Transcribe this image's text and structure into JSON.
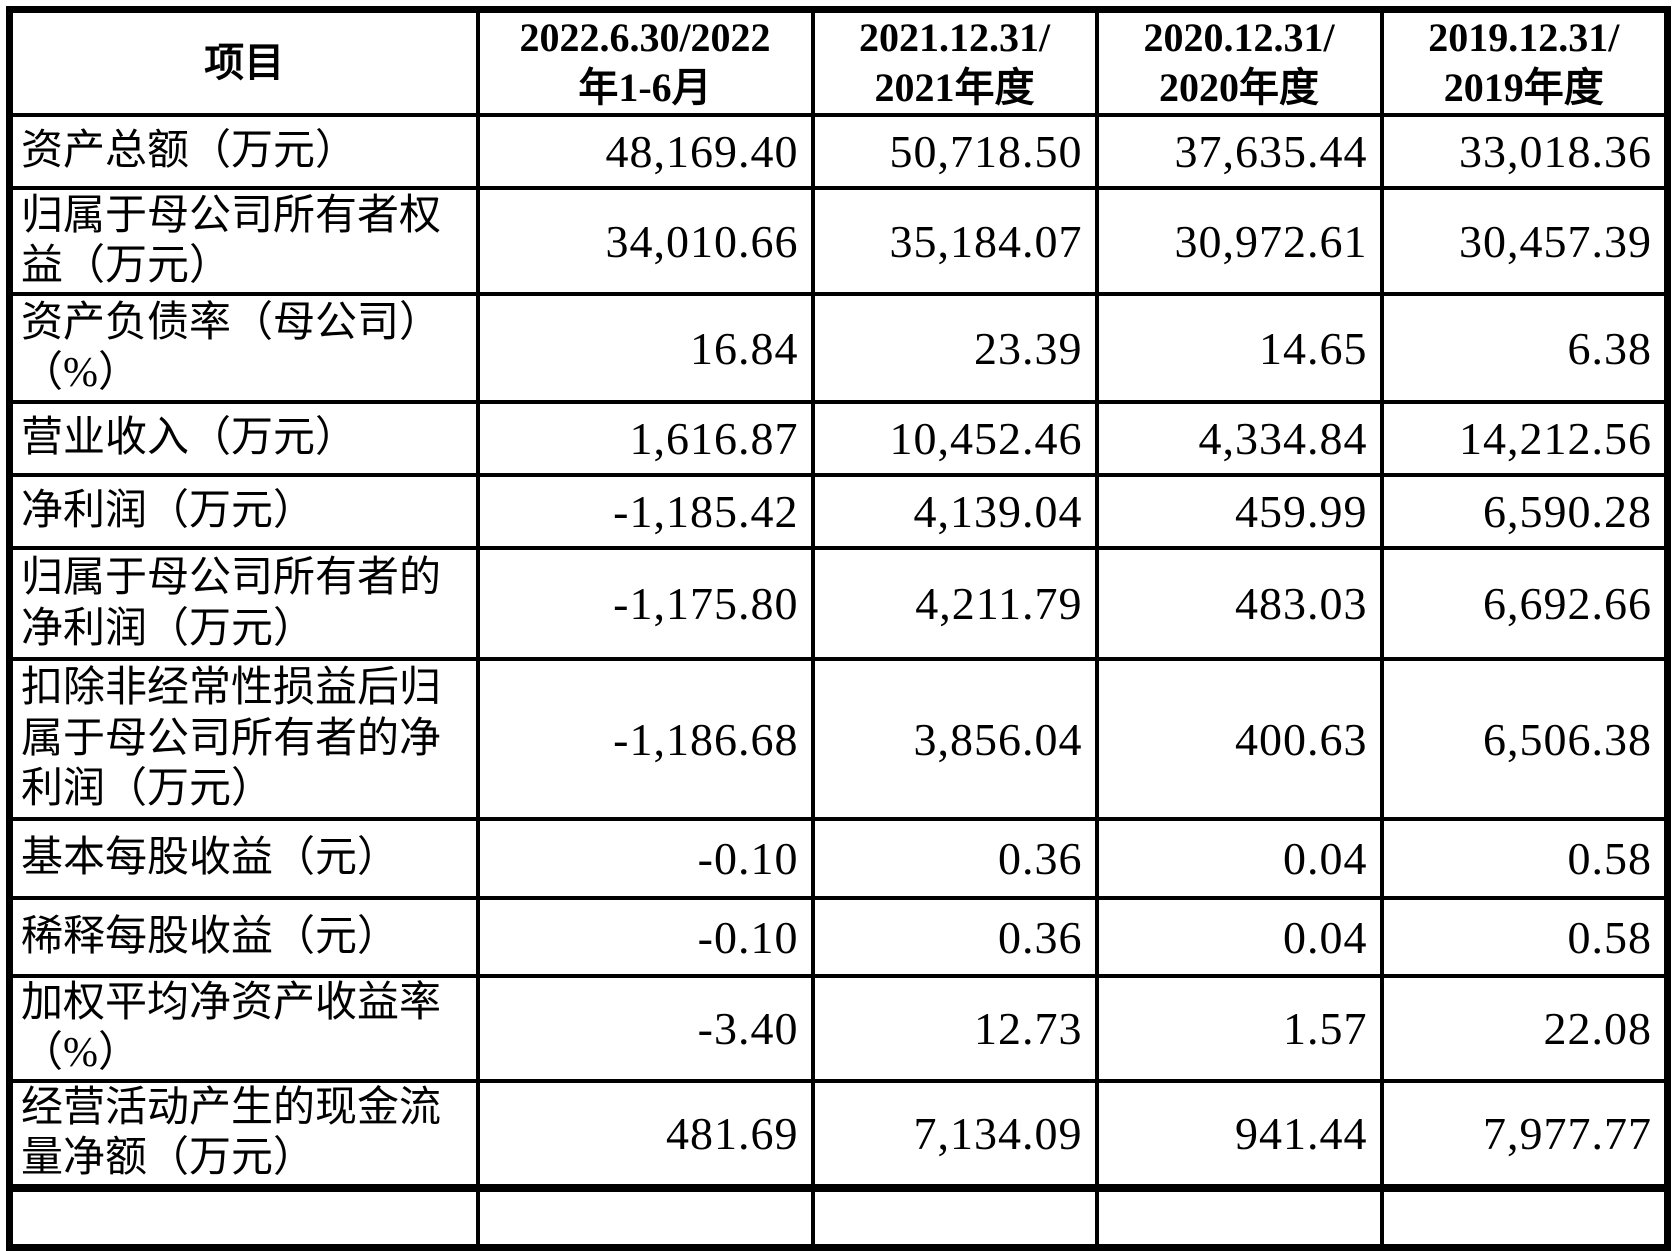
{
  "page": {
    "background": "#ffffff",
    "text_color": "#000000",
    "border_color": "#000000"
  },
  "table": {
    "header": {
      "item_column": "项目",
      "period_columns": [
        "2022.6.30/2022\n年1-6月",
        "2021.12.31/\n2021年度",
        "2020.12.31/\n2020年度",
        "2019.12.31/\n2019年度"
      ]
    },
    "rows": [
      {
        "label": "资产总额（万元）",
        "values": [
          "48,169.40",
          "50,718.50",
          "37,635.44",
          "33,018.36"
        ]
      },
      {
        "label": "归属于母公司所有者权益（万元）",
        "values": [
          "34,010.66",
          "35,184.07",
          "30,972.61",
          "30,457.39"
        ]
      },
      {
        "label": "资产负债率（母公司）（%）",
        "values": [
          "16.84",
          "23.39",
          "14.65",
          "6.38"
        ]
      },
      {
        "label": "营业收入（万元）",
        "values": [
          "1,616.87",
          "10,452.46",
          "4,334.84",
          "14,212.56"
        ]
      },
      {
        "label": "净利润（万元）",
        "values": [
          "-1,185.42",
          "4,139.04",
          "459.99",
          "6,590.28"
        ]
      },
      {
        "label": "归属于母公司所有者的净利润（万元）",
        "values": [
          "-1,175.80",
          "4,211.79",
          "483.03",
          "6,692.66"
        ]
      },
      {
        "label": "扣除非经常性损益后归属于母公司所有者的净利润（万元）",
        "values": [
          "-1,186.68",
          "3,856.04",
          "400.63",
          "6,506.38"
        ]
      },
      {
        "label": "基本每股收益（元）",
        "values": [
          "-0.10",
          "0.36",
          "0.04",
          "0.58"
        ]
      },
      {
        "label": "稀释每股收益（元）",
        "values": [
          "-0.10",
          "0.36",
          "0.04",
          "0.58"
        ]
      },
      {
        "label": "加权平均净资产收益率（%）",
        "values": [
          "-3.40",
          "12.73",
          "1.57",
          "22.08"
        ]
      },
      {
        "label": "经营活动产生的现金流量净额（万元）",
        "values": [
          "481.69",
          "7,134.09",
          "941.44",
          "7,977.77"
        ]
      }
    ]
  }
}
